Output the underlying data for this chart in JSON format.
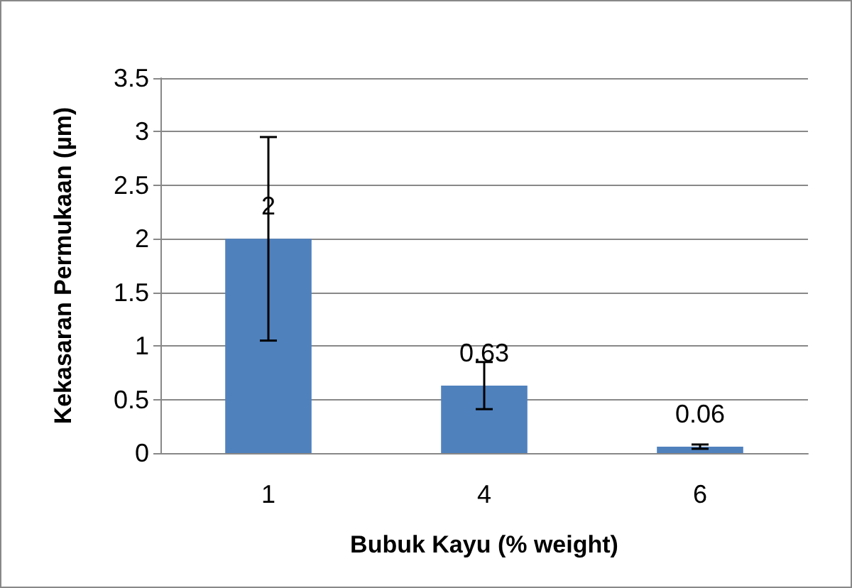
{
  "chart_data": {
    "type": "bar",
    "xlabel": "Bubuk Kayu (% weight)",
    "ylabel": "Kekasaran Permukaan (µm)",
    "categories": [
      "1",
      "4",
      "6"
    ],
    "values": [
      2,
      0.63,
      0.06
    ],
    "errors": [
      0.95,
      0.22,
      0.02
    ],
    "color": "#4f81bd",
    "ylim": [
      0,
      3.5
    ],
    "yticks": [
      0,
      0.5,
      1,
      1.5,
      2,
      2.5,
      3,
      3.5
    ],
    "grid": "y",
    "data_labels": true
  }
}
